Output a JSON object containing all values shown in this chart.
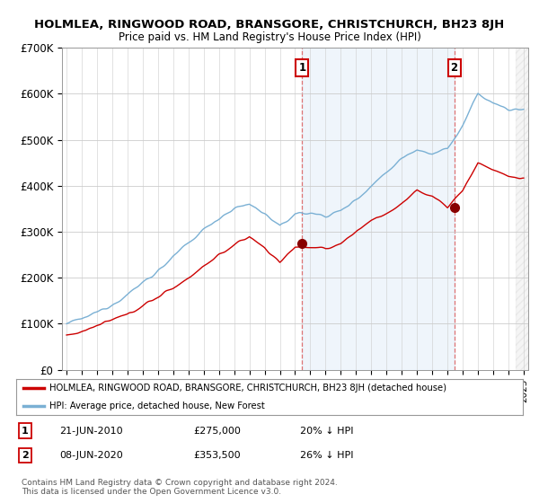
{
  "title": "HOLMLEA, RINGWOOD ROAD, BRANSGORE, CHRISTCHURCH, BH23 8JH",
  "subtitle": "Price paid vs. HM Land Registry's House Price Index (HPI)",
  "ylim": [
    0,
    700000
  ],
  "yticks": [
    0,
    100000,
    200000,
    300000,
    400000,
    500000,
    600000,
    700000
  ],
  "ytick_labels": [
    "£0",
    "£100K",
    "£200K",
    "£300K",
    "£400K",
    "£500K",
    "£600K",
    "£700K"
  ],
  "xlim_start": 1994.7,
  "xlim_end": 2025.3,
  "legend_line1": "HOLMLEA, RINGWOOD ROAD, BRANSGORE, CHRISTCHURCH, BH23 8JH (detached house)",
  "legend_line2": "HPI: Average price, detached house, New Forest",
  "sale1_date": "21-JUN-2010",
  "sale1_price": "£275,000",
  "sale1_pct": "20% ↓ HPI",
  "sale1_x": 2010.47,
  "sale1_y": 275000,
  "sale2_date": "08-JUN-2020",
  "sale2_price": "£353,500",
  "sale2_pct": "26% ↓ HPI",
  "sale2_x": 2020.44,
  "sale2_y": 353500,
  "footer": "Contains HM Land Registry data © Crown copyright and database right 2024.\nThis data is licensed under the Open Government Licence v3.0.",
  "line_color_property": "#cc0000",
  "line_color_hpi": "#7ab0d4",
  "shade_color": "#ddeeff",
  "background_color": "#ffffff",
  "grid_color": "#cccccc",
  "hatch_color": "#cccccc"
}
